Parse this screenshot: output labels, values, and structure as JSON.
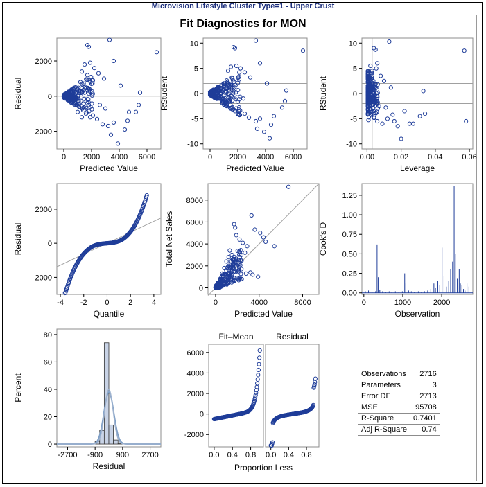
{
  "banner": "Microvision Lifestyle Cluster Type=1 - Upper Crust",
  "title": "Fit Diagnostics for MON",
  "colors": {
    "marker": "#1f3d99",
    "refline": "#a0a0a0",
    "hist_fill": "#c8d3e6",
    "curve": "#7f9fc6"
  },
  "chart_data": [
    {
      "type": "scatter",
      "id": "resid_vs_pred",
      "xlabel": "Predicted Value",
      "ylabel": "Residual",
      "xlim": [
        -500,
        7000
      ],
      "ylim": [
        -3000,
        3300
      ],
      "xticks": [
        0,
        2000,
        4000,
        6000
      ],
      "yticks": [
        -2000,
        0,
        2000
      ],
      "refline_y": [
        0
      ],
      "points": [
        [
          6700,
          2500
        ],
        [
          3300,
          3200
        ],
        [
          1700,
          2900
        ],
        [
          1800,
          2800
        ],
        [
          3600,
          2000
        ],
        [
          1900,
          1900
        ],
        [
          1500,
          1800
        ],
        [
          2200,
          1600
        ],
        [
          1300,
          1400
        ],
        [
          1700,
          1200
        ],
        [
          2500,
          1300
        ],
        [
          2900,
          1000
        ],
        [
          2100,
          900
        ],
        [
          4100,
          600
        ],
        [
          2000,
          700
        ],
        [
          1200,
          800
        ],
        [
          1500,
          500
        ],
        [
          1000,
          400
        ],
        [
          800,
          300
        ],
        [
          600,
          200
        ],
        [
          400,
          100
        ],
        [
          200,
          50
        ],
        [
          100,
          80
        ],
        [
          50,
          0
        ],
        [
          300,
          -100
        ],
        [
          500,
          -200
        ],
        [
          800,
          -400
        ],
        [
          1100,
          -600
        ],
        [
          1400,
          -800
        ],
        [
          1600,
          -1000
        ],
        [
          1900,
          -1200
        ],
        [
          2100,
          -1100
        ],
        [
          2400,
          -1300
        ],
        [
          2800,
          -1600
        ],
        [
          3200,
          -1700
        ],
        [
          3600,
          -1500
        ],
        [
          2600,
          -500
        ],
        [
          3000,
          -700
        ],
        [
          3900,
          -2700
        ],
        [
          3400,
          -2200
        ],
        [
          4400,
          -1900
        ],
        [
          4600,
          -1400
        ],
        [
          5200,
          -900
        ],
        [
          5400,
          -500
        ],
        [
          5500,
          200
        ],
        [
          4700,
          -900
        ],
        [
          1300,
          -1200
        ],
        [
          1000,
          -900
        ],
        [
          1700,
          -400
        ],
        [
          1500,
          200
        ]
      ]
    },
    {
      "type": "scatter",
      "id": "rstudent_vs_pred",
      "xlabel": "Predicted Value",
      "ylabel": "RStudent",
      "xlim": [
        -500,
        7000
      ],
      "ylim": [
        -11,
        11
      ],
      "xticks": [
        0,
        2000,
        4000,
        6000
      ],
      "yticks": [
        -10,
        -5,
        0,
        5,
        10
      ],
      "refline_y": [
        -2,
        2
      ],
      "points": [
        [
          6700,
          8.5
        ],
        [
          3300,
          10.5
        ],
        [
          1700,
          9.2
        ],
        [
          1800,
          9.0
        ],
        [
          3600,
          6.0
        ],
        [
          1900,
          5.5
        ],
        [
          1500,
          5.3
        ],
        [
          2200,
          5.0
        ],
        [
          1300,
          4.5
        ],
        [
          2500,
          4.2
        ],
        [
          2900,
          3.2
        ],
        [
          2100,
          2.8
        ],
        [
          4100,
          2.0
        ],
        [
          1200,
          2.6
        ],
        [
          1000,
          1.5
        ],
        [
          800,
          1.0
        ],
        [
          500,
          0.5
        ],
        [
          200,
          0.2
        ],
        [
          100,
          0.2
        ],
        [
          50,
          0
        ],
        [
          300,
          -0.5
        ],
        [
          600,
          -1.0
        ],
        [
          900,
          -1.8
        ],
        [
          1200,
          -2.5
        ],
        [
          1500,
          -3.0
        ],
        [
          1800,
          -3.5
        ],
        [
          2100,
          -3.2
        ],
        [
          2500,
          -4.0
        ],
        [
          2800,
          -4.8
        ],
        [
          3300,
          -5.5
        ],
        [
          3600,
          -5.0
        ],
        [
          3900,
          -7.6
        ],
        [
          3400,
          -7.0
        ],
        [
          4400,
          -6.2
        ],
        [
          4600,
          -4.5
        ],
        [
          5200,
          -2.8
        ],
        [
          5400,
          -1.5
        ],
        [
          5500,
          0.6
        ],
        [
          4300,
          -8.9
        ],
        [
          1000,
          -2.2
        ],
        [
          1400,
          -1.5
        ],
        [
          1600,
          1.2
        ],
        [
          2400,
          -1.0
        ]
      ]
    },
    {
      "type": "scatter",
      "id": "rstudent_vs_leverage",
      "xlabel": "Leverage",
      "ylabel": "RStudent",
      "xlim": [
        -0.003,
        0.062
      ],
      "ylim": [
        -11,
        11
      ],
      "xticks": [
        0,
        0.02,
        0.04,
        0.06
      ],
      "yticks": [
        -10,
        -5,
        0,
        5,
        10
      ],
      "xtick_labels": [
        "0.00",
        "0.02",
        "0.04",
        "0.06"
      ],
      "refline_y": [
        -2,
        2
      ],
      "refline_x": [
        0.003
      ],
      "points": [
        [
          0.057,
          8.5
        ],
        [
          0.058,
          -5.5
        ],
        [
          0.013,
          10.3
        ],
        [
          0.004,
          9.0
        ],
        [
          0.005,
          8.7
        ],
        [
          0.006,
          6.0
        ],
        [
          0.002,
          5.5
        ],
        [
          0.003,
          4.5
        ],
        [
          0.001,
          3.0
        ],
        [
          0.001,
          1.5
        ],
        [
          0.001,
          0.5
        ],
        [
          0.001,
          -0.5
        ],
        [
          0.002,
          -1.5
        ],
        [
          0.002,
          -3.0
        ],
        [
          0.003,
          -4.0
        ],
        [
          0.004,
          -4.8
        ],
        [
          0.006,
          -5.5
        ],
        [
          0.009,
          -6.0
        ],
        [
          0.012,
          -5.0
        ],
        [
          0.015,
          -4.2
        ],
        [
          0.016,
          -5.5
        ],
        [
          0.018,
          -6.5
        ],
        [
          0.02,
          -9.0
        ],
        [
          0.022,
          -3.5
        ],
        [
          0.025,
          -6.0
        ],
        [
          0.027,
          -6.0
        ],
        [
          0.031,
          -4.5
        ],
        [
          0.033,
          0.5
        ],
        [
          0.034,
          -4.0
        ],
        [
          0.01,
          2.5
        ],
        [
          0.007,
          -2.5
        ],
        [
          0.011,
          -2.8
        ],
        [
          0.014,
          1.2
        ],
        [
          0.008,
          3.5
        ]
      ]
    },
    {
      "type": "scatter",
      "id": "qq_residual",
      "xlabel": "Quantile",
      "ylabel": "Residual",
      "xlim": [
        -4.3,
        4.6
      ],
      "ylim": [
        -3000,
        3500
      ],
      "xticks": [
        -4,
        -2,
        0,
        2,
        4
      ],
      "yticks": [
        -2000,
        0,
        2000
      ],
      "refline": {
        "x0": -4.3,
        "y0": -1380,
        "x1": 4.6,
        "y1": 1480
      },
      "shape": "qq"
    },
    {
      "type": "scatter",
      "id": "observed_vs_pred",
      "xlabel": "Predicted Value",
      "ylabel": "Total Net Sales",
      "xlim": [
        -700,
        9500
      ],
      "ylim": [
        -600,
        9500
      ],
      "xticks": [
        0,
        4000,
        8000
      ],
      "yticks": [
        0,
        2000,
        4000,
        6000,
        8000
      ],
      "refline": {
        "x0": -700,
        "y0": -700,
        "x1": 9500,
        "y1": 9500
      },
      "points": [
        [
          6700,
          9200
        ],
        [
          3300,
          6600
        ],
        [
          1700,
          5800
        ],
        [
          1800,
          5500
        ],
        [
          3600,
          5300
        ],
        [
          4400,
          4600
        ],
        [
          4600,
          4200
        ],
        [
          5400,
          3800
        ],
        [
          2200,
          4400
        ],
        [
          2500,
          4100
        ],
        [
          2900,
          3800
        ],
        [
          1900,
          4800
        ],
        [
          1300,
          3400
        ],
        [
          1500,
          3000
        ],
        [
          1200,
          2800
        ],
        [
          1000,
          2400
        ],
        [
          800,
          1800
        ],
        [
          600,
          1300
        ],
        [
          400,
          800
        ],
        [
          200,
          400
        ],
        [
          100,
          100
        ],
        [
          50,
          50
        ],
        [
          300,
          0
        ],
        [
          500,
          200
        ],
        [
          800,
          300
        ],
        [
          1100,
          500
        ],
        [
          1400,
          700
        ],
        [
          1700,
          900
        ],
        [
          2000,
          900
        ],
        [
          2400,
          800
        ],
        [
          2800,
          1300
        ],
        [
          3200,
          1400
        ],
        [
          3900,
          1000
        ],
        [
          3400,
          1200
        ],
        [
          2100,
          1500
        ],
        [
          1600,
          2000
        ],
        [
          2300,
          2500
        ],
        [
          2700,
          3200
        ],
        [
          4100,
          5000
        ]
      ]
    },
    {
      "type": "bar",
      "id": "cooks_d",
      "xlabel": "Observation",
      "ylabel": "Cook's D",
      "xlim": [
        -50,
        2800
      ],
      "ylim": [
        -0.02,
        1.4
      ],
      "xticks": [
        0,
        1000,
        2000
      ],
      "yticks": [
        0,
        0.25,
        0.5,
        0.75,
        1.0,
        1.25
      ],
      "ytick_labels": [
        "0.00",
        "0.25",
        "0.50",
        "0.75",
        "1.00",
        "1.25"
      ],
      "spikes": [
        [
          40,
          0.02
        ],
        [
          120,
          0.03
        ],
        [
          210,
          0.01
        ],
        [
          300,
          0.02
        ],
        [
          340,
          0.62
        ],
        [
          370,
          0.2
        ],
        [
          410,
          0.04
        ],
        [
          480,
          0.02
        ],
        [
          560,
          0.01
        ],
        [
          650,
          0.02
        ],
        [
          720,
          0.01
        ],
        [
          810,
          0.02
        ],
        [
          900,
          0.01
        ],
        [
          990,
          0.02
        ],
        [
          1050,
          0.25
        ],
        [
          1080,
          0.12
        ],
        [
          1150,
          0.03
        ],
        [
          1220,
          0.02
        ],
        [
          1300,
          0.01
        ],
        [
          1400,
          0.02
        ],
        [
          1480,
          0.01
        ],
        [
          1560,
          0.02
        ],
        [
          1640,
          0.03
        ],
        [
          1720,
          0.05
        ],
        [
          1800,
          0.12
        ],
        [
          1840,
          0.06
        ],
        [
          1900,
          0.15
        ],
        [
          1950,
          0.1
        ],
        [
          2010,
          0.58
        ],
        [
          2060,
          0.22
        ],
        [
          2120,
          0.08
        ],
        [
          2180,
          0.15
        ],
        [
          2230,
          0.3
        ],
        [
          2280,
          0.4
        ],
        [
          2320,
          1.37
        ],
        [
          2350,
          0.5
        ],
        [
          2400,
          0.18
        ],
        [
          2450,
          0.3
        ],
        [
          2480,
          0.12
        ],
        [
          2520,
          0.1
        ],
        [
          2560,
          0.05
        ],
        [
          2600,
          0.03
        ],
        [
          2650,
          0.12
        ],
        [
          2700,
          0.08
        ]
      ]
    },
    {
      "type": "bar",
      "id": "residual_histogram",
      "xlabel": "Residual",
      "ylabel": "Percent",
      "xlim": [
        -3400,
        3400
      ],
      "ylim": [
        -2,
        84
      ],
      "xticks": [
        -2700,
        -900,
        900,
        2700
      ],
      "yticks": [
        0,
        20,
        40,
        60,
        80
      ],
      "bins": [
        [
          -1200,
          0.5
        ],
        [
          -900,
          2
        ],
        [
          -600,
          10
        ],
        [
          -300,
          74
        ],
        [
          0,
          14
        ],
        [
          300,
          3
        ],
        [
          600,
          0.5
        ]
      ],
      "bin_width": 300,
      "curves": [
        "normal",
        "kernel"
      ]
    },
    {
      "type": "scatter",
      "id": "rf_plot",
      "panels": [
        "Fit–Mean",
        "Residual"
      ],
      "xlabel": "Proportion Less",
      "xlim": [
        -0.12,
        1.08
      ],
      "ylim": [
        -3200,
        6800
      ],
      "xticks": [
        0,
        0.4,
        0.8
      ],
      "yticks": [
        -2000,
        0,
        2000,
        4000,
        6000
      ],
      "xtick_labels": [
        "0.0",
        "0.4",
        "0.8"
      ]
    }
  ],
  "stats_table": [
    {
      "label": "Observations",
      "value": "2716"
    },
    {
      "label": "Parameters",
      "value": "3"
    },
    {
      "label": "Error DF",
      "value": "2713"
    },
    {
      "label": "MSE",
      "value": "95708"
    },
    {
      "label": "R-Square",
      "value": "0.7401"
    },
    {
      "label": "Adj R-Square",
      "value": "0.74"
    }
  ]
}
